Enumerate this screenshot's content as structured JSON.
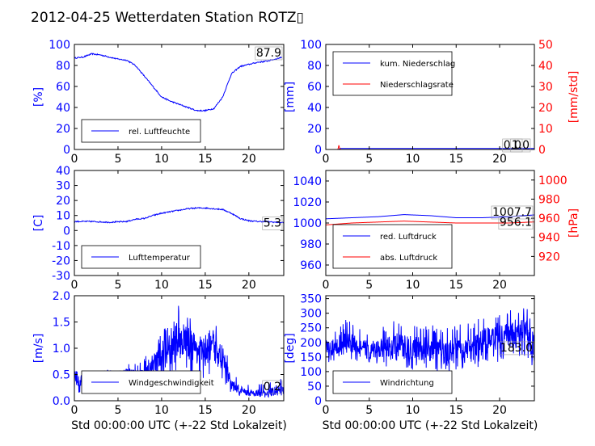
{
  "title": "2012-04-25 Wetterdaten Station ROTZ▯",
  "colors": {
    "primary": "#0000ff",
    "secondary": "#ff0000",
    "axis": "#000000"
  },
  "chart_data": [
    {
      "id": "humidity",
      "type": "line",
      "xlim": [
        0,
        24
      ],
      "xticks": [
        0,
        5,
        10,
        15,
        20
      ],
      "ylim": [
        0,
        100
      ],
      "yticks": [
        0,
        20,
        40,
        60,
        80,
        100
      ],
      "ylabel": "[%]",
      "legend": [
        "rel. Luftfeuchte"
      ],
      "legend_placement": "lower-left",
      "annotation": "87.9",
      "series": [
        {
          "name": "rel. Luftfeuchte",
          "color": "#0000ff",
          "x": [
            0,
            1,
            2,
            3,
            4,
            5,
            6,
            7,
            8,
            9,
            10,
            11,
            12,
            13,
            14,
            15,
            16,
            17,
            18,
            19,
            20,
            21,
            22,
            23,
            23.8
          ],
          "y": [
            87,
            88,
            91,
            90,
            88,
            86,
            85,
            80,
            70,
            60,
            50,
            46,
            43,
            40,
            37,
            37,
            39,
            50,
            72,
            79,
            81,
            83,
            84,
            86,
            87.9
          ]
        }
      ]
    },
    {
      "id": "precipitation",
      "type": "line",
      "xlim": [
        0,
        24
      ],
      "xticks": [
        0,
        5,
        10,
        15,
        20
      ],
      "ylim": [
        0,
        100
      ],
      "yticks": [
        0,
        20,
        40,
        60,
        80,
        100
      ],
      "ylabel": "[mm]",
      "y2lim": [
        0,
        50
      ],
      "y2ticks": [
        0,
        10,
        20,
        30,
        40,
        50
      ],
      "y2label": "[mm/std]",
      "legend": [
        "kum. Niederschlag",
        "Niederschlagsrate"
      ],
      "legend_placement": "upper-left",
      "annotations": [
        "0.0",
        "1.0"
      ],
      "series": [
        {
          "name": "kum. Niederschlag",
          "axis": "left",
          "color": "#0000ff",
          "x": [
            0,
            1.5,
            1.6,
            24
          ],
          "y": [
            0,
            0,
            1.0,
            1.0
          ]
        },
        {
          "name": "Niederschlagsrate",
          "axis": "right",
          "color": "#ff0000",
          "x": [
            0,
            1.4,
            1.5,
            1.6,
            1.7,
            24
          ],
          "y": [
            0,
            0,
            2,
            0.5,
            0,
            0
          ]
        }
      ]
    },
    {
      "id": "temperature",
      "type": "line",
      "xlim": [
        0,
        24
      ],
      "xticks": [
        0,
        5,
        10,
        15,
        20
      ],
      "ylim": [
        -30,
        40
      ],
      "yticks": [
        -30,
        -20,
        -10,
        0,
        10,
        20,
        30,
        40
      ],
      "ylabel": "[C]",
      "legend": [
        "Lufttemperatur"
      ],
      "legend_placement": "lower-left",
      "annotation": "5.3",
      "series": [
        {
          "name": "Lufttemperatur",
          "color": "#0000ff",
          "x": [
            0,
            2,
            4,
            6,
            7,
            8,
            9,
            10,
            11,
            12,
            13,
            14,
            15,
            16,
            17,
            18,
            19,
            20,
            21,
            22,
            23,
            24
          ],
          "y": [
            6,
            6,
            5.5,
            6,
            7.5,
            8,
            10,
            11.5,
            12.5,
            13.5,
            14.5,
            15,
            15,
            14.5,
            14,
            11.5,
            8,
            6.5,
            6,
            6,
            5.5,
            5.3
          ]
        }
      ]
    },
    {
      "id": "pressure",
      "type": "line",
      "xlim": [
        0,
        24
      ],
      "xticks": [
        0,
        5,
        10,
        15,
        20
      ],
      "ylim": [
        950,
        1050
      ],
      "yticks": [
        960,
        980,
        1000,
        1020,
        1040
      ],
      "y2lim": [
        900,
        1010
      ],
      "y2ticks": [
        920,
        940,
        960,
        980,
        1000
      ],
      "y2label": "[hPa]",
      "legend": [
        "red. Luftdruck",
        "abs. Luftdruck"
      ],
      "legend_placement": "lower-left",
      "annotations": [
        "1007.7",
        "956.1"
      ],
      "series": [
        {
          "name": "red. Luftdruck",
          "axis": "left",
          "color": "#0000ff",
          "x": [
            0,
            3,
            6,
            9,
            12,
            15,
            18,
            21,
            24
          ],
          "y": [
            1004,
            1005,
            1006,
            1008,
            1007,
            1005,
            1005,
            1006,
            1007.7
          ]
        },
        {
          "name": "abs. Luftdruck",
          "axis": "right",
          "color": "#ff0000",
          "x": [
            0,
            3,
            6,
            9,
            12,
            15,
            18,
            21,
            24
          ],
          "y": [
            953,
            955,
            956,
            957,
            956,
            955,
            955,
            955,
            956.1
          ]
        }
      ]
    },
    {
      "id": "wind_speed",
      "type": "line",
      "xlim": [
        0,
        24
      ],
      "xticks": [
        0,
        5,
        10,
        15,
        20
      ],
      "ylim": [
        0,
        2.0
      ],
      "yticks": [
        0.0,
        0.5,
        1.0,
        1.5,
        2.0
      ],
      "ylabel": "[m/s]",
      "xlabel": "Std 00:00:00 UTC (+-22 Std Lokalzeit)",
      "legend": [
        "Windgeschwindigkeit"
      ],
      "legend_placement": "lower-left",
      "annotation": "0.2",
      "series": [
        {
          "name": "Windgeschwindigkeit",
          "color": "#0000ff",
          "x": [
            0,
            1,
            2,
            3,
            4,
            5,
            6,
            7,
            8,
            9,
            10,
            11,
            12,
            13,
            14,
            15,
            16,
            17,
            18,
            19,
            20,
            21,
            22,
            23,
            24
          ],
          "y": [
            0.45,
            0.35,
            0.4,
            0.35,
            0.45,
            0.35,
            0.5,
            0.45,
            0.5,
            0.7,
            0.9,
            0.95,
            1.2,
            1.1,
            1.0,
            0.9,
            1.0,
            0.8,
            0.3,
            0.2,
            0.15,
            0.15,
            0.12,
            0.2,
            0.2
          ],
          "ymin": [
            0.1,
            0.15,
            0.1,
            0.2,
            0.15,
            0.2,
            0.2,
            0.2,
            0.2,
            0.3,
            0.4,
            0.4,
            0.5,
            0.5,
            0.5,
            0.4,
            0.45,
            0.35,
            0.15,
            0.1,
            0.1,
            0.08,
            0.05,
            0.1,
            0.1
          ],
          "ymax": [
            0.65,
            0.55,
            0.6,
            0.55,
            0.65,
            0.55,
            0.75,
            0.7,
            0.8,
            1.1,
            1.4,
            1.5,
            1.9,
            1.65,
            1.55,
            1.35,
            1.5,
            1.25,
            0.55,
            0.4,
            0.3,
            0.35,
            0.3,
            0.45,
            0.4
          ]
        }
      ]
    },
    {
      "id": "wind_direction",
      "type": "line",
      "xlim": [
        0,
        24
      ],
      "xticks": [
        0,
        5,
        10,
        15,
        20
      ],
      "ylim": [
        0,
        360
      ],
      "yticks": [
        0,
        50,
        100,
        150,
        200,
        250,
        300,
        350
      ],
      "ylabel": "[deg]",
      "xlabel": "Std 00:00:00 UTC (+-22 Std Lokalzeit)",
      "legend": [
        "Windrichtung"
      ],
      "legend_placement": "lower-left",
      "annotation": "183.0",
      "series": [
        {
          "name": "Windrichtung",
          "color": "#0000ff",
          "x": [
            0,
            1,
            2,
            3,
            4,
            5,
            6,
            7,
            8,
            9,
            10,
            11,
            12,
            13,
            14,
            15,
            16,
            17,
            18,
            19,
            20,
            21,
            22,
            23,
            24
          ],
          "y": [
            180,
            175,
            200,
            195,
            180,
            170,
            180,
            175,
            190,
            185,
            180,
            175,
            180,
            170,
            160,
            175,
            170,
            180,
            200,
            215,
            220,
            225,
            230,
            235,
            183
          ],
          "ymin": [
            130,
            120,
            110,
            140,
            130,
            120,
            125,
            115,
            120,
            110,
            100,
            110,
            105,
            95,
            90,
            100,
            100,
            110,
            120,
            130,
            130,
            130,
            140,
            140,
            110
          ],
          "ymax": [
            240,
            260,
            280,
            270,
            250,
            240,
            245,
            260,
            280,
            270,
            260,
            255,
            270,
            250,
            250,
            260,
            265,
            270,
            290,
            300,
            310,
            315,
            320,
            325,
            290
          ]
        }
      ]
    }
  ]
}
